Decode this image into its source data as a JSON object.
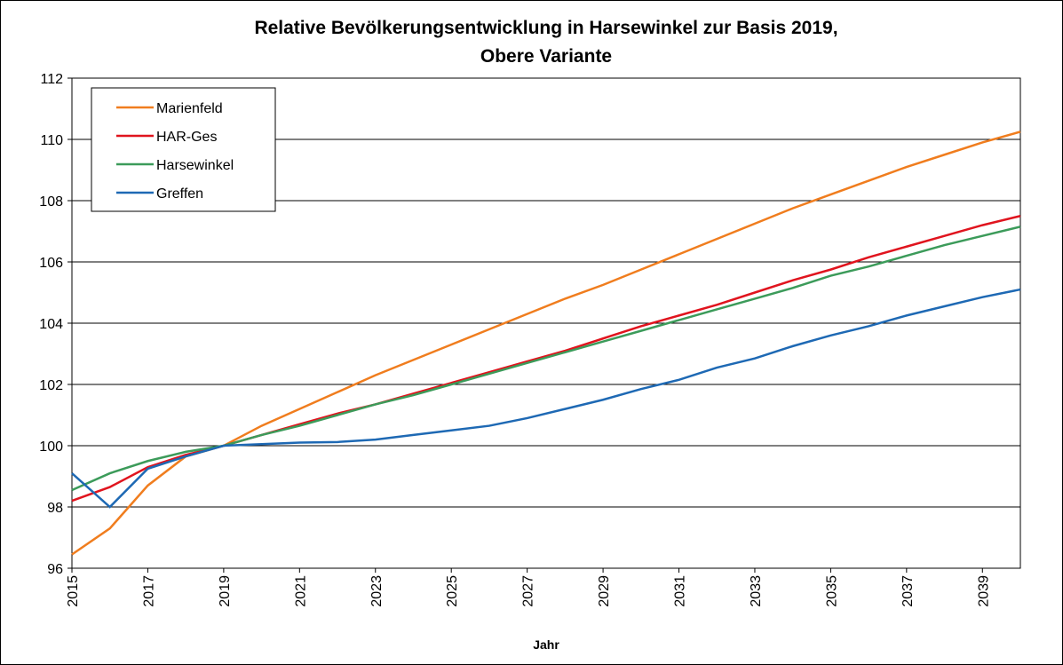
{
  "chart_data": {
    "type": "line",
    "title": [
      "Relative Bevölkerungsentwicklung in Harsewinkel zur Basis 2019,",
      "Obere Variante"
    ],
    "x_label": "Jahr",
    "x": [
      2015,
      2016,
      2017,
      2018,
      2019,
      2020,
      2021,
      2022,
      2023,
      2024,
      2025,
      2026,
      2027,
      2028,
      2029,
      2030,
      2031,
      2032,
      2033,
      2034,
      2035,
      2036,
      2037,
      2038,
      2039,
      2040
    ],
    "series": [
      {
        "name": "Marienfeld",
        "color": "#f07d1e",
        "values": [
          96.45,
          97.3,
          98.7,
          99.65,
          100,
          100.65,
          101.2,
          101.75,
          102.3,
          102.8,
          103.3,
          103.8,
          104.3,
          104.8,
          105.25,
          105.75,
          106.25,
          106.75,
          107.25,
          107.75,
          108.2,
          108.65,
          109.1,
          109.5,
          109.9,
          110.25
        ]
      },
      {
        "name": "HAR-Ges",
        "color": "#e0141e",
        "values": [
          98.2,
          98.65,
          99.3,
          99.7,
          100,
          100.35,
          100.7,
          101.05,
          101.35,
          101.7,
          102.05,
          102.4,
          102.75,
          103.1,
          103.5,
          103.9,
          104.25,
          104.6,
          105.0,
          105.4,
          105.75,
          106.15,
          106.5,
          106.85,
          107.2,
          107.5
        ]
      },
      {
        "name": "Harsewinkel",
        "color": "#3c9b5a",
        "values": [
          98.55,
          99.1,
          99.5,
          99.8,
          100,
          100.35,
          100.65,
          101.0,
          101.35,
          101.65,
          102.0,
          102.35,
          102.7,
          103.05,
          103.4,
          103.75,
          104.1,
          104.45,
          104.8,
          105.15,
          105.55,
          105.85,
          106.2,
          106.55,
          106.85,
          107.15
        ]
      },
      {
        "name": "Greffen",
        "color": "#1e69b4",
        "values": [
          99.1,
          98.0,
          99.25,
          99.65,
          100,
          100.05,
          100.1,
          100.12,
          100.2,
          100.35,
          100.5,
          100.65,
          100.9,
          101.2,
          101.5,
          101.85,
          102.15,
          102.55,
          102.85,
          103.25,
          103.6,
          103.9,
          104.25,
          104.55,
          104.85,
          105.1
        ]
      }
    ],
    "xlim": [
      2015,
      2040
    ],
    "xticks": [
      2015,
      2017,
      2019,
      2021,
      2023,
      2025,
      2027,
      2029,
      2031,
      2033,
      2035,
      2037,
      2039
    ],
    "ylim": [
      96,
      112
    ],
    "yticks": [
      96,
      98,
      100,
      102,
      104,
      106,
      108,
      110,
      112
    ],
    "grid": true,
    "legend": "upper-left"
  }
}
